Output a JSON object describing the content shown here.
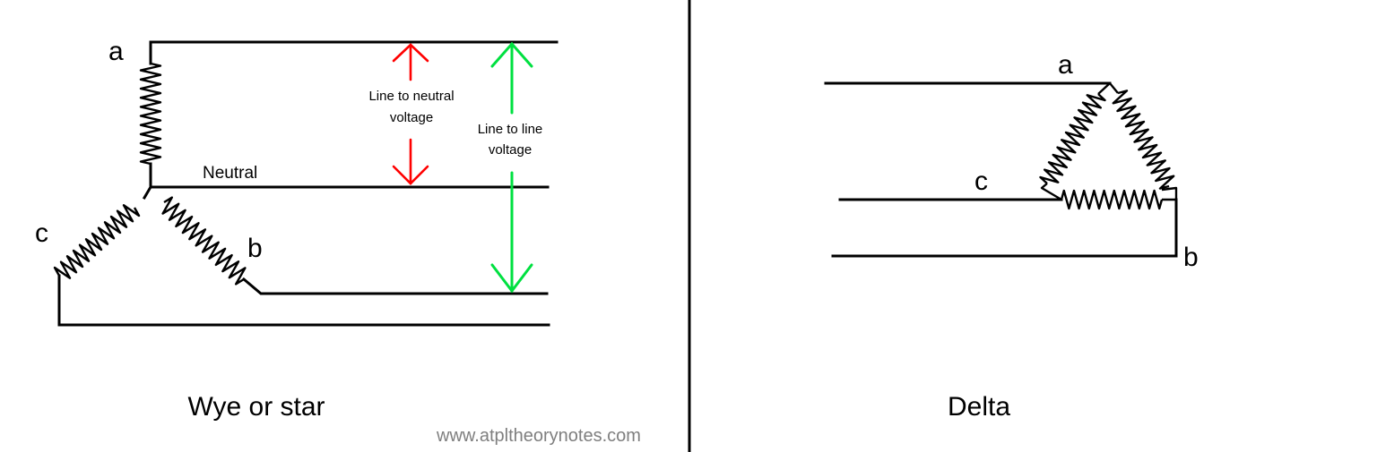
{
  "colors": {
    "line_to_neutral_arrow": "#ff0000",
    "line_to_line_arrow": "#00e040",
    "divider": "#000000",
    "watermark": "#7f7f7f"
  },
  "wye": {
    "title": "Wye or star",
    "phase_a": "a",
    "phase_b": "b",
    "phase_c": "c",
    "neutral_label": "Neutral",
    "ln_voltage_line1": "Line to neutral",
    "ln_voltage_line2": "voltage",
    "ll_voltage_line1": "Line to line",
    "ll_voltage_line2": "voltage"
  },
  "delta": {
    "title": "Delta",
    "phase_a": "a",
    "phase_b": "b",
    "phase_c": "c"
  },
  "watermark": "www.atpltheorynotes.com"
}
